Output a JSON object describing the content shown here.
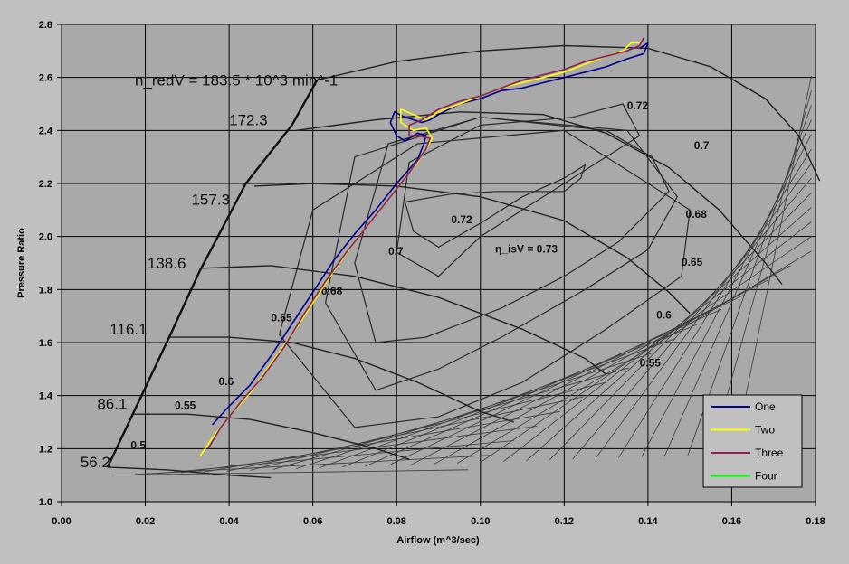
{
  "chart_data": {
    "type": "line",
    "xlabel": "Airflow (m^3/sec)",
    "ylabel": "Pressure Ratio",
    "xlim": [
      0,
      0.18
    ],
    "ylim": [
      1.0,
      2.8
    ],
    "xticks": [
      "0.00",
      "0.02",
      "0.04",
      "0.06",
      "0.08",
      "0.10",
      "0.12",
      "0.14",
      "0.16",
      "0.18"
    ],
    "yticks": [
      "1.0",
      "1.2",
      "1.4",
      "1.6",
      "1.8",
      "2.0",
      "2.2",
      "2.4",
      "2.6",
      "2.8"
    ],
    "grid": true,
    "legend_position": "bottom-right",
    "background_map": {
      "speed_formula": "n_redV = 183.5 * 10^3 min^-1",
      "speed_labels": [
        {
          "text": "56.2",
          "x": 0.0045,
          "y": 1.13
        },
        {
          "text": "86.1",
          "x": 0.0085,
          "y": 1.35
        },
        {
          "text": "116.1",
          "x": 0.0115,
          "y": 1.63
        },
        {
          "text": "138.6",
          "x": 0.0205,
          "y": 1.88
        },
        {
          "text": "157.3",
          "x": 0.031,
          "y": 2.12
        },
        {
          "text": "172.3",
          "x": 0.04,
          "y": 2.42
        }
      ],
      "efficiency_labels": [
        {
          "text": "0.5",
          "x": 0.0165,
          "y": 1.2
        },
        {
          "text": "0.55",
          "x": 0.027,
          "y": 1.35
        },
        {
          "text": "0.6",
          "x": 0.0375,
          "y": 1.44
        },
        {
          "text": "0.65",
          "x": 0.05,
          "y": 1.68
        },
        {
          "text": "0.68",
          "x": 0.062,
          "y": 1.78
        },
        {
          "text": "0.7",
          "x": 0.078,
          "y": 1.93
        },
        {
          "text": "0.72",
          "x": 0.093,
          "y": 2.05
        },
        {
          "text": "0.72",
          "x": 0.135,
          "y": 2.48
        },
        {
          "text": "0.7",
          "x": 0.151,
          "y": 2.33
        },
        {
          "text": "0.68",
          "x": 0.149,
          "y": 2.07
        },
        {
          "text": "0.65",
          "x": 0.148,
          "y": 1.89
        },
        {
          "text": "0.6",
          "x": 0.142,
          "y": 1.69
        },
        {
          "text": "0.55",
          "x": 0.138,
          "y": 1.51
        }
      ],
      "peak_efficiency_label": "η_isV = 0.73",
      "surge_line": [
        [
          0.011,
          1.13
        ],
        [
          0.017,
          1.33
        ],
        [
          0.026,
          1.63
        ],
        [
          0.033,
          1.87
        ],
        [
          0.044,
          2.2
        ],
        [
          0.055,
          2.42
        ],
        [
          0.061,
          2.59
        ]
      ],
      "speed_lines": [
        {
          "name": "56.2",
          "points": [
            [
              0.011,
              1.13
            ],
            [
              0.025,
              1.12
            ],
            [
              0.04,
              1.1
            ],
            [
              0.05,
              1.09
            ]
          ]
        },
        {
          "name": "86.1",
          "points": [
            [
              0.017,
              1.33
            ],
            [
              0.03,
              1.33
            ],
            [
              0.045,
              1.31
            ],
            [
              0.06,
              1.26
            ],
            [
              0.075,
              1.2
            ],
            [
              0.083,
              1.16
            ]
          ]
        },
        {
          "name": "116.1",
          "points": [
            [
              0.026,
              1.62
            ],
            [
              0.04,
              1.62
            ],
            [
              0.055,
              1.6
            ],
            [
              0.07,
              1.54
            ],
            [
              0.085,
              1.45
            ],
            [
              0.1,
              1.34
            ],
            [
              0.108,
              1.3
            ]
          ]
        },
        {
          "name": "138.6",
          "points": [
            [
              0.033,
              1.88
            ],
            [
              0.05,
              1.89
            ],
            [
              0.07,
              1.85
            ],
            [
              0.09,
              1.77
            ],
            [
              0.11,
              1.65
            ],
            [
              0.125,
              1.54
            ],
            [
              0.13,
              1.48
            ]
          ]
        },
        {
          "name": "157.3",
          "points": [
            [
              0.046,
              2.19
            ],
            [
              0.06,
              2.2
            ],
            [
              0.08,
              2.19
            ],
            [
              0.1,
              2.15
            ],
            [
              0.12,
              2.06
            ],
            [
              0.135,
              1.92
            ],
            [
              0.145,
              1.79
            ],
            [
              0.15,
              1.71
            ]
          ]
        },
        {
          "name": "172.3",
          "points": [
            [
              0.056,
              2.4
            ],
            [
              0.075,
              2.44
            ],
            [
              0.095,
              2.47
            ],
            [
              0.115,
              2.46
            ],
            [
              0.13,
              2.39
            ],
            [
              0.145,
              2.26
            ],
            [
              0.157,
              2.1
            ],
            [
              0.168,
              1.9
            ],
            [
              0.172,
              1.82
            ]
          ]
        },
        {
          "name": "183.5",
          "points": [
            [
              0.061,
              2.59
            ],
            [
              0.08,
              2.66
            ],
            [
              0.1,
              2.7
            ],
            [
              0.12,
              2.72
            ],
            [
              0.14,
              2.71
            ],
            [
              0.155,
              2.64
            ],
            [
              0.168,
              2.52
            ],
            [
              0.176,
              2.38
            ],
            [
              0.181,
              2.21
            ]
          ]
        }
      ],
      "efficiency_islands": [
        {
          "name": "0.73",
          "points": [
            [
              0.082,
              2.13
            ],
            [
              0.093,
              2.16
            ],
            [
              0.104,
              2.17
            ],
            [
              0.12,
              2.17
            ],
            [
              0.124,
              2.22
            ],
            [
              0.125,
              2.27
            ],
            [
              0.12,
              2.22
            ],
            [
              0.11,
              2.15
            ],
            [
              0.1,
              2.05
            ],
            [
              0.09,
              1.96
            ],
            [
              0.084,
              2.02
            ],
            [
              0.082,
              2.13
            ]
          ]
        },
        {
          "name": "0.72",
          "points": [
            [
              0.08,
              1.94
            ],
            [
              0.083,
              2.28
            ],
            [
              0.1,
              2.42
            ],
            [
              0.122,
              2.45
            ],
            [
              0.134,
              2.5
            ],
            [
              0.138,
              2.38
            ],
            [
              0.12,
              2.2
            ],
            [
              0.1,
              2.0
            ],
            [
              0.09,
              1.85
            ],
            [
              0.08,
              1.94
            ]
          ]
        },
        {
          "name": "0.7",
          "points": [
            [
              0.07,
              1.9
            ],
            [
              0.078,
              2.35
            ],
            [
              0.1,
              2.45
            ],
            [
              0.13,
              2.4
            ],
            [
              0.141,
              2.3
            ],
            [
              0.145,
              2.17
            ],
            [
              0.133,
              1.98
            ],
            [
              0.12,
              1.85
            ],
            [
              0.105,
              1.73
            ],
            [
              0.087,
              1.62
            ],
            [
              0.075,
              1.6
            ],
            [
              0.07,
              1.9
            ]
          ]
        },
        {
          "name": "0.68",
          "points": [
            [
              0.063,
              1.75
            ],
            [
              0.07,
              2.3
            ],
            [
              0.1,
              2.45
            ],
            [
              0.135,
              2.4
            ],
            [
              0.147,
              2.15
            ],
            [
              0.14,
              1.95
            ],
            [
              0.125,
              1.8
            ],
            [
              0.105,
              1.62
            ],
            [
              0.09,
              1.5
            ],
            [
              0.075,
              1.42
            ],
            [
              0.063,
              1.75
            ]
          ]
        },
        {
          "name": "0.65",
          "points": [
            [
              0.052,
              1.63
            ],
            [
              0.06,
              2.1
            ],
            [
              0.085,
              2.35
            ],
            [
              0.12,
              2.4
            ],
            [
              0.15,
              2.1
            ],
            [
              0.148,
              1.85
            ],
            [
              0.13,
              1.65
            ],
            [
              0.11,
              1.45
            ],
            [
              0.09,
              1.32
            ],
            [
              0.07,
              1.28
            ],
            [
              0.052,
              1.63
            ]
          ]
        }
      ]
    },
    "series": [
      {
        "name": "One",
        "color": "#00008b",
        "points": [
          [
            0.036,
            1.29
          ],
          [
            0.04,
            1.36
          ],
          [
            0.045,
            1.44
          ],
          [
            0.05,
            1.55
          ],
          [
            0.055,
            1.67
          ],
          [
            0.06,
            1.79
          ],
          [
            0.065,
            1.91
          ],
          [
            0.07,
            2.01
          ],
          [
            0.075,
            2.1
          ],
          [
            0.08,
            2.2
          ],
          [
            0.085,
            2.29
          ],
          [
            0.0865,
            2.35
          ],
          [
            0.087,
            2.38
          ],
          [
            0.085,
            2.39
          ],
          [
            0.082,
            2.36
          ],
          [
            0.08,
            2.38
          ],
          [
            0.0785,
            2.43
          ],
          [
            0.0795,
            2.47
          ],
          [
            0.082,
            2.45
          ],
          [
            0.086,
            2.43
          ],
          [
            0.088,
            2.44
          ],
          [
            0.09,
            2.46
          ],
          [
            0.095,
            2.5
          ],
          [
            0.1,
            2.52
          ],
          [
            0.105,
            2.55
          ],
          [
            0.11,
            2.56
          ],
          [
            0.115,
            2.58
          ],
          [
            0.12,
            2.6
          ],
          [
            0.125,
            2.62
          ],
          [
            0.13,
            2.64
          ],
          [
            0.135,
            2.67
          ],
          [
            0.139,
            2.69
          ],
          [
            0.14,
            2.73
          ],
          [
            0.138,
            2.71
          ]
        ]
      },
      {
        "name": "Two",
        "color": "#ffff00",
        "points": [
          [
            0.033,
            1.17
          ],
          [
            0.036,
            1.24
          ],
          [
            0.04,
            1.32
          ],
          [
            0.045,
            1.41
          ],
          [
            0.05,
            1.52
          ],
          [
            0.055,
            1.63
          ],
          [
            0.06,
            1.75
          ],
          [
            0.065,
            1.87
          ],
          [
            0.07,
            1.98
          ],
          [
            0.075,
            2.08
          ],
          [
            0.08,
            2.18
          ],
          [
            0.085,
            2.28
          ],
          [
            0.0885,
            2.37
          ],
          [
            0.087,
            2.41
          ],
          [
            0.084,
            2.4
          ],
          [
            0.081,
            2.43
          ],
          [
            0.081,
            2.48
          ],
          [
            0.084,
            2.46
          ],
          [
            0.087,
            2.44
          ],
          [
            0.09,
            2.47
          ],
          [
            0.095,
            2.5
          ],
          [
            0.1,
            2.53
          ],
          [
            0.105,
            2.56
          ],
          [
            0.11,
            2.58
          ],
          [
            0.115,
            2.6
          ],
          [
            0.12,
            2.62
          ],
          [
            0.125,
            2.65
          ],
          [
            0.13,
            2.68
          ],
          [
            0.134,
            2.7
          ],
          [
            0.136,
            2.73
          ],
          [
            0.138,
            2.73
          ]
        ]
      },
      {
        "name": "Three",
        "color": "#8b2252",
        "points": [
          [
            0.035,
            1.2
          ],
          [
            0.038,
            1.28
          ],
          [
            0.043,
            1.38
          ],
          [
            0.048,
            1.47
          ],
          [
            0.053,
            1.58
          ],
          [
            0.058,
            1.71
          ],
          [
            0.063,
            1.83
          ],
          [
            0.068,
            1.94
          ],
          [
            0.073,
            2.04
          ],
          [
            0.078,
            2.14
          ],
          [
            0.083,
            2.24
          ],
          [
            0.087,
            2.33
          ],
          [
            0.088,
            2.37
          ],
          [
            0.085,
            2.38
          ],
          [
            0.083,
            2.38
          ],
          [
            0.083,
            2.42
          ],
          [
            0.086,
            2.44
          ],
          [
            0.09,
            2.48
          ],
          [
            0.095,
            2.51
          ],
          [
            0.1,
            2.53
          ],
          [
            0.105,
            2.56
          ],
          [
            0.11,
            2.59
          ],
          [
            0.115,
            2.61
          ],
          [
            0.12,
            2.63
          ],
          [
            0.125,
            2.66
          ],
          [
            0.13,
            2.68
          ],
          [
            0.135,
            2.7
          ],
          [
            0.138,
            2.72
          ],
          [
            0.139,
            2.75
          ]
        ]
      },
      {
        "name": "Four",
        "color": "#00ff00",
        "points": []
      }
    ]
  }
}
